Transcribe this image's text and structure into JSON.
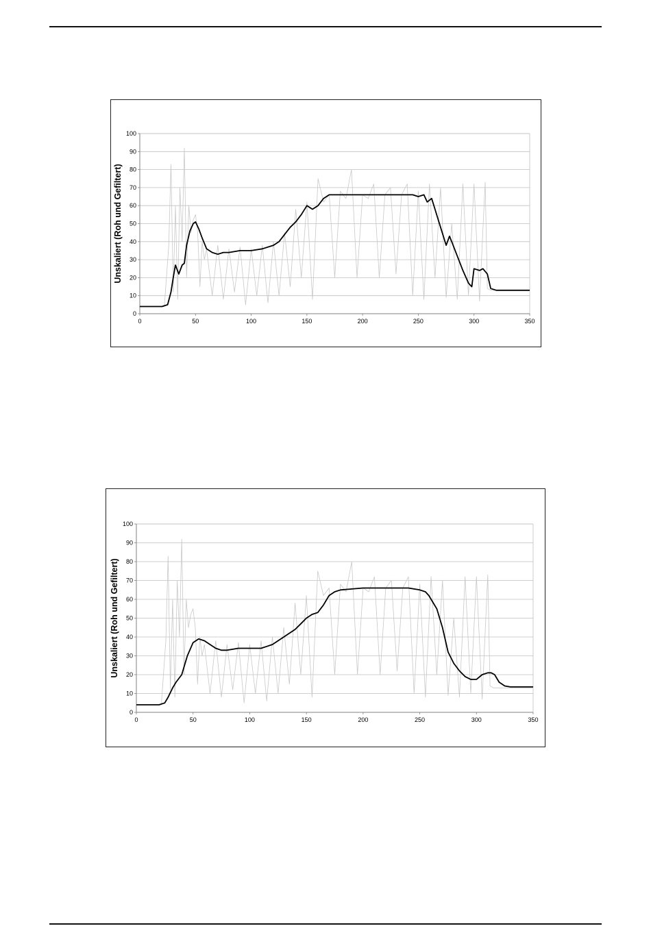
{
  "page": {
    "background": "#ffffff",
    "rule_color": "#111111"
  },
  "chart_data": [
    {
      "type": "line",
      "ylabel": "Unskaliert (Roh und Gefiltert)",
      "xlabel": "",
      "xlim": [
        0,
        350
      ],
      "ylim": [
        0,
        100
      ],
      "xticks": [
        "0",
        "50",
        "100",
        "150",
        "200",
        "250",
        "300",
        "350"
      ],
      "yticks": [
        "0",
        "10",
        "20",
        "30",
        "40",
        "50",
        "60",
        "70",
        "80",
        "90",
        "100"
      ],
      "grid": "horizontal",
      "legend": "none",
      "colors": {
        "raw": "#c8c8c8",
        "filtered": "#000000",
        "grid": "#bfbfbf",
        "axis": "#808080"
      },
      "series": [
        {
          "role": "raw",
          "x": [
            0,
            22,
            26,
            28,
            30,
            32,
            34,
            36,
            38,
            40,
            42,
            44,
            46,
            48,
            50,
            52,
            54,
            56,
            58,
            60,
            65,
            70,
            75,
            80,
            85,
            90,
            95,
            100,
            105,
            110,
            115,
            120,
            125,
            130,
            135,
            140,
            145,
            150,
            155,
            160,
            165,
            170,
            175,
            180,
            185,
            190,
            195,
            200,
            205,
            210,
            215,
            220,
            225,
            230,
            235,
            240,
            245,
            250,
            255,
            260,
            265,
            270,
            275,
            280,
            285,
            290,
            295,
            300,
            305,
            310,
            312,
            315,
            320,
            350
          ],
          "y": [
            4,
            4,
            38,
            83,
            12,
            60,
            8,
            70,
            40,
            92,
            20,
            60,
            45,
            52,
            55,
            45,
            15,
            40,
            30,
            36,
            10,
            38,
            8,
            36,
            12,
            37,
            5,
            36,
            10,
            38,
            6,
            40,
            10,
            45,
            15,
            58,
            20,
            62,
            8,
            75,
            62,
            66,
            20,
            68,
            64,
            80,
            20,
            66,
            64,
            72,
            20,
            66,
            70,
            22,
            66,
            72,
            10,
            68,
            8,
            72,
            20,
            70,
            9,
            50,
            8,
            72,
            10,
            72,
            7,
            73,
            14,
            13,
            13,
            13
          ]
        },
        {
          "role": "filtered",
          "x": [
            0,
            20,
            25,
            28,
            30,
            32,
            35,
            38,
            40,
            42,
            45,
            48,
            50,
            53,
            56,
            60,
            65,
            70,
            75,
            80,
            90,
            100,
            110,
            120,
            125,
            130,
            135,
            140,
            145,
            150,
            155,
            160,
            165,
            170,
            180,
            200,
            230,
            245,
            250,
            255,
            258,
            262,
            265,
            270,
            275,
            278,
            280,
            285,
            290,
            295,
            298,
            300,
            305,
            308,
            312,
            315,
            320,
            350
          ],
          "y": [
            4,
            4,
            5,
            12,
            20,
            27,
            22,
            27,
            28,
            38,
            46,
            50,
            51,
            47,
            42,
            36,
            34,
            33,
            34,
            34,
            35,
            35,
            36,
            38,
            40,
            44,
            48,
            51,
            55,
            60,
            58,
            60,
            64,
            66,
            66,
            66,
            66,
            66,
            65,
            66,
            62,
            64,
            58,
            48,
            38,
            43,
            40,
            32,
            24,
            17,
            15,
            25,
            24,
            25,
            22,
            14,
            13,
            13
          ]
        }
      ]
    },
    {
      "type": "line",
      "ylabel": "Unskaliert (Roh und Gefiltert)",
      "xlabel": "",
      "xlim": [
        0,
        350
      ],
      "ylim": [
        0,
        100
      ],
      "xticks": [
        "0",
        "50",
        "100",
        "150",
        "200",
        "250",
        "300",
        "350"
      ],
      "yticks": [
        "0",
        "10",
        "20",
        "30",
        "40",
        "50",
        "60",
        "70",
        "80",
        "90",
        "100"
      ],
      "grid": "horizontal",
      "legend": "none",
      "colors": {
        "raw": "#c8c8c8",
        "filtered": "#000000",
        "grid": "#bfbfbf",
        "axis": "#808080"
      },
      "series": [
        {
          "role": "raw",
          "x": [
            0,
            22,
            26,
            28,
            30,
            32,
            34,
            36,
            38,
            40,
            42,
            44,
            46,
            48,
            50,
            52,
            54,
            56,
            58,
            60,
            65,
            70,
            75,
            80,
            85,
            90,
            95,
            100,
            105,
            110,
            115,
            120,
            125,
            130,
            135,
            140,
            145,
            150,
            155,
            160,
            165,
            170,
            175,
            180,
            185,
            190,
            195,
            200,
            205,
            210,
            215,
            220,
            225,
            230,
            235,
            240,
            245,
            250,
            255,
            260,
            265,
            270,
            275,
            280,
            285,
            290,
            295,
            300,
            305,
            310,
            312,
            315,
            320,
            350
          ],
          "y": [
            4,
            4,
            38,
            83,
            12,
            60,
            8,
            70,
            40,
            92,
            20,
            60,
            45,
            52,
            55,
            45,
            15,
            40,
            30,
            36,
            10,
            38,
            8,
            36,
            12,
            37,
            5,
            36,
            10,
            38,
            6,
            40,
            10,
            45,
            15,
            58,
            20,
            62,
            8,
            75,
            62,
            66,
            20,
            68,
            64,
            80,
            20,
            66,
            64,
            72,
            20,
            66,
            70,
            22,
            66,
            72,
            10,
            68,
            8,
            72,
            20,
            70,
            9,
            50,
            8,
            72,
            10,
            72,
            7,
            73,
            14,
            13,
            13,
            13
          ]
        },
        {
          "role": "filtered",
          "x": [
            0,
            20,
            25,
            28,
            32,
            35,
            40,
            45,
            50,
            55,
            60,
            65,
            70,
            75,
            80,
            90,
            100,
            110,
            115,
            120,
            125,
            130,
            135,
            140,
            145,
            150,
            155,
            160,
            165,
            170,
            175,
            180,
            190,
            200,
            220,
            240,
            250,
            255,
            258,
            262,
            265,
            270,
            275,
            280,
            285,
            290,
            295,
            300,
            305,
            310,
            313,
            316,
            320,
            325,
            330,
            350
          ],
          "y": [
            4,
            4,
            5,
            8,
            13,
            16,
            20,
            30,
            37,
            39,
            38,
            36,
            34,
            33,
            33,
            34,
            34,
            34,
            35,
            36,
            38,
            40,
            42,
            44,
            47,
            50,
            52,
            53,
            57,
            62,
            64,
            65,
            65.5,
            66,
            66,
            66,
            65,
            64,
            62,
            58,
            55,
            45,
            32,
            26,
            22,
            19,
            17.5,
            17.5,
            20,
            21,
            21,
            20,
            16,
            14,
            13.5,
            13.5
          ]
        }
      ]
    }
  ]
}
